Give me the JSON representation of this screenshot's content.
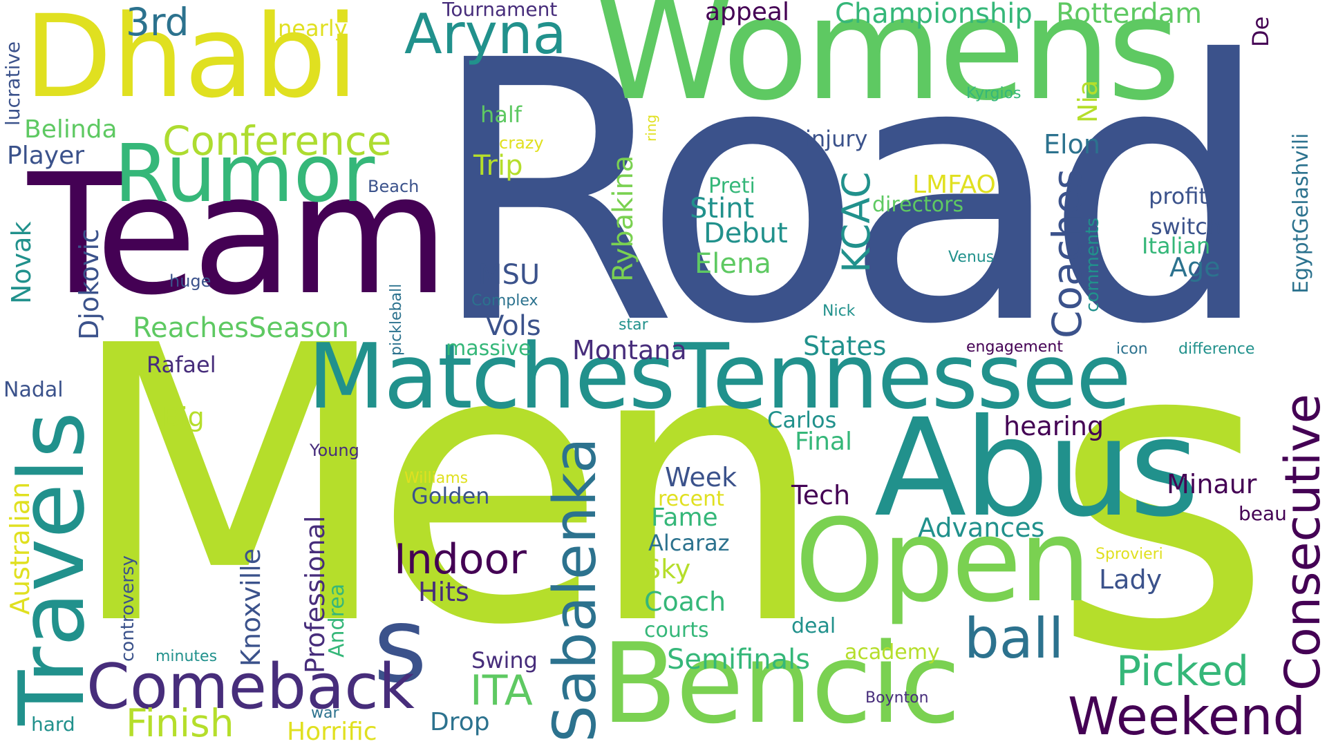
{
  "palette": {
    "navy": "#3b528b",
    "purple": "#440154",
    "indigo": "#472d7b",
    "teal": "#21918c",
    "blue": "#2c728e",
    "green": "#5ec962",
    "mint": "#35b779",
    "lime": "#b5de2b",
    "yellow": "#e0e020",
    "light_yellow": "#fde725"
  },
  "words": [
    {
      "text": "Road",
      "color": "#3b528b"
    },
    {
      "text": "Men",
      "color": "#b5de2b"
    },
    {
      "text": "s",
      "color": "#3b528b"
    },
    {
      "text": "Womens",
      "color": "#5ec962"
    },
    {
      "text": "s",
      "color": "#b5de2b"
    },
    {
      "text": "Team",
      "color": "#440154"
    },
    {
      "text": "Dhabi",
      "color": "#e0e020"
    },
    {
      "text": "MatchesTennessee",
      "color": "#21918c"
    },
    {
      "text": "Abus",
      "color": "#21918c"
    },
    {
      "text": "Open",
      "color": "#7ad151"
    },
    {
      "text": "Bencic",
      "color": "#7ad151"
    },
    {
      "text": "Travels",
      "color": "#21918c"
    },
    {
      "text": "Rumor",
      "color": "#35b779"
    },
    {
      "text": "Aryna",
      "color": "#21918c"
    },
    {
      "text": "Comeback",
      "color": "#472d7b"
    },
    {
      "text": "Sabalenka",
      "color": "#2c728e"
    },
    {
      "text": "Consecutive",
      "color": "#440154"
    },
    {
      "text": "Weekend",
      "color": "#440154"
    },
    {
      "text": "ball",
      "color": "#2c728e"
    },
    {
      "text": "Indoor",
      "color": "#440154"
    },
    {
      "text": "Conference",
      "color": "#addc30"
    },
    {
      "text": "Picked",
      "color": "#35b779"
    },
    {
      "text": "Finish",
      "color": "#b5de2b"
    },
    {
      "text": "Coaches",
      "color": "#3b528b"
    },
    {
      "text": "3rd",
      "color": "#2c728e"
    },
    {
      "text": "Championship",
      "color": "#35b779"
    },
    {
      "text": "Rotterdam",
      "color": "#5ec962"
    },
    {
      "text": "ITA",
      "color": "#5ec962"
    },
    {
      "text": "KCAC",
      "color": "#21918c"
    },
    {
      "text": "Djokovic",
      "color": "#3b528b"
    },
    {
      "text": "ReachesSeason",
      "color": "#5ec962"
    },
    {
      "text": "Semifinals",
      "color": "#35b779"
    },
    {
      "text": "Rybakina",
      "color": "#7ad151"
    },
    {
      "text": "Australian",
      "color": "#e0e020"
    },
    {
      "text": "Professional",
      "color": "#472d7b"
    },
    {
      "text": "Knoxville",
      "color": "#3b528b"
    },
    {
      "text": "Belinda",
      "color": "#5ec962"
    },
    {
      "text": "Player",
      "color": "#3b528b"
    },
    {
      "text": "Novak",
      "color": "#21918c"
    },
    {
      "text": "Elon",
      "color": "#2c728e"
    },
    {
      "text": "Stint",
      "color": "#21918c"
    },
    {
      "text": "Debut",
      "color": "#21918c"
    },
    {
      "text": "Elena",
      "color": "#5ec962"
    },
    {
      "text": "Trip",
      "color": "#b5de2b"
    },
    {
      "text": "MSU",
      "color": "#3b528b"
    },
    {
      "text": "Vols",
      "color": "#3b528b"
    },
    {
      "text": "Montana",
      "color": "#472d7b"
    },
    {
      "text": "States",
      "color": "#21918c"
    },
    {
      "text": "hearing",
      "color": "#440154"
    },
    {
      "text": "Advances",
      "color": "#21918c"
    },
    {
      "text": "Minaur",
      "color": "#440154"
    },
    {
      "text": "Lady",
      "color": "#3b528b"
    },
    {
      "text": "Week",
      "color": "#3b528b"
    },
    {
      "text": "Golden",
      "color": "#3b528b"
    },
    {
      "text": "Hits",
      "color": "#472d7b"
    },
    {
      "text": "Tech",
      "color": "#440154"
    },
    {
      "text": "Final",
      "color": "#35b779"
    },
    {
      "text": "Carlos",
      "color": "#21918c"
    },
    {
      "text": "Big",
      "color": "#b5de2b"
    },
    {
      "text": "Rafael",
      "color": "#472d7b"
    },
    {
      "text": "Nadal",
      "color": "#3b528b"
    },
    {
      "text": "Coach",
      "color": "#35b779"
    },
    {
      "text": "Sky",
      "color": "#b5de2b"
    },
    {
      "text": "Fame",
      "color": "#35b779"
    },
    {
      "text": "Alcaraz",
      "color": "#2c728e"
    },
    {
      "text": "Swing",
      "color": "#472d7b"
    },
    {
      "text": "Drop",
      "color": "#2c728e"
    },
    {
      "text": "Horrific",
      "color": "#e0e020"
    },
    {
      "text": "Age",
      "color": "#2c728e"
    },
    {
      "text": "Italian",
      "color": "#35b779"
    },
    {
      "text": "switch",
      "color": "#3b528b"
    },
    {
      "text": "profit",
      "color": "#3b528b"
    },
    {
      "text": "comments",
      "color": "#21918c"
    },
    {
      "text": "EgyptGelashvili",
      "color": "#2c728e"
    },
    {
      "text": "De",
      "color": "#440154"
    },
    {
      "text": "Nia",
      "color": "#b5de2b"
    },
    {
      "text": "LMFAO",
      "color": "#e0e020"
    },
    {
      "text": "directors",
      "color": "#5ec962"
    },
    {
      "text": "Preti",
      "color": "#35b779"
    },
    {
      "text": "injury",
      "color": "#3b528b"
    },
    {
      "text": "appeal",
      "color": "#440154"
    },
    {
      "text": "half",
      "color": "#5ec962"
    },
    {
      "text": "crazy",
      "color": "#e0e020"
    },
    {
      "text": "Beach",
      "color": "#3b528b"
    },
    {
      "text": "Tournament",
      "color": "#472d7b"
    },
    {
      "text": "nearly",
      "color": "#e0e020"
    },
    {
      "text": "lucrative",
      "color": "#3b528b"
    },
    {
      "text": "huge",
      "color": "#3b528b"
    },
    {
      "text": "pickleball",
      "color": "#2c728e"
    },
    {
      "text": "Complex",
      "color": "#2c728e"
    },
    {
      "text": "massive",
      "color": "#35b779"
    },
    {
      "text": "star",
      "color": "#21918c"
    },
    {
      "text": "Nick",
      "color": "#21918c"
    },
    {
      "text": "Venus",
      "color": "#21918c"
    },
    {
      "text": "Kyrgios",
      "color": "#35b779"
    },
    {
      "text": "ring",
      "color": "#e0e020"
    },
    {
      "text": "engagement",
      "color": "#440154"
    },
    {
      "text": "icon",
      "color": "#2c728e"
    },
    {
      "text": "difference",
      "color": "#21918c"
    },
    {
      "text": "Young",
      "color": "#472d7b"
    },
    {
      "text": "Williams",
      "color": "#e0e020"
    },
    {
      "text": "recent",
      "color": "#e0e020"
    },
    {
      "text": "courts",
      "color": "#35b779"
    },
    {
      "text": "deal",
      "color": "#21918c"
    },
    {
      "text": "academy",
      "color": "#b5de2b"
    },
    {
      "text": "Sprovieri",
      "color": "#e0e020"
    },
    {
      "text": "beau",
      "color": "#440154"
    },
    {
      "text": "Boynton",
      "color": "#472d7b"
    },
    {
      "text": "controversy",
      "color": "#3b528b"
    },
    {
      "text": "minutes",
      "color": "#21918c"
    },
    {
      "text": "Andrea",
      "color": "#35b779"
    },
    {
      "text": "war",
      "color": "#2c728e"
    },
    {
      "text": "hard",
      "color": "#21918c"
    }
  ]
}
